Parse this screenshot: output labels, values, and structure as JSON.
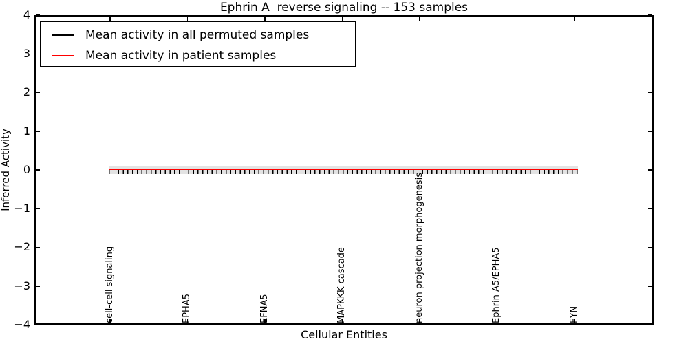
{
  "title": "Ephrin A  reverse signaling -- 153 samples",
  "legend": {
    "items": [
      {
        "label": "Mean activity in all permuted samples",
        "color": "#000000"
      },
      {
        "label": "Mean activity in patient samples",
        "color": "#ff0000"
      }
    ],
    "position": "upper left"
  },
  "axes": {
    "xlabel": "Cellular Entities",
    "ylabel": "Inferred Activity",
    "ytick_labels": [
      "4",
      "3",
      "2",
      "1",
      "0",
      "−1",
      "−2",
      "−3",
      "−4"
    ]
  },
  "chart_data": {
    "type": "line",
    "title": "Ephrin A  reverse signaling -- 153 samples",
    "xlabel": "Cellular Entities",
    "ylabel": "Inferred Activity",
    "ylim": [
      -4,
      4
    ],
    "yticks": [
      4,
      3,
      2,
      1,
      0,
      -1,
      -2,
      -3,
      -4
    ],
    "xtick_labels": [
      "cell-cell signaling",
      "EPHA5",
      "EFNA5",
      "MAPKKK cascade",
      "neuron projection morphogenesis",
      "Ephrin A5/EPHA5",
      "FYN"
    ],
    "n_entities_approx": 100,
    "samples": 153,
    "grid": false,
    "legend_position": "upper left",
    "series": [
      {
        "name": "Mean activity in all permuted samples",
        "color": "#000000",
        "y_constant": -0.02,
        "marker": "vertical-dash-per-entity"
      },
      {
        "name": "Mean activity in patient samples",
        "color": "#ff0000",
        "y_constant": 0.01,
        "marker": "none"
      }
    ],
    "shaded_band": {
      "ymin": -0.1,
      "ymax": 0.1,
      "color": "#e3e3e3"
    }
  }
}
